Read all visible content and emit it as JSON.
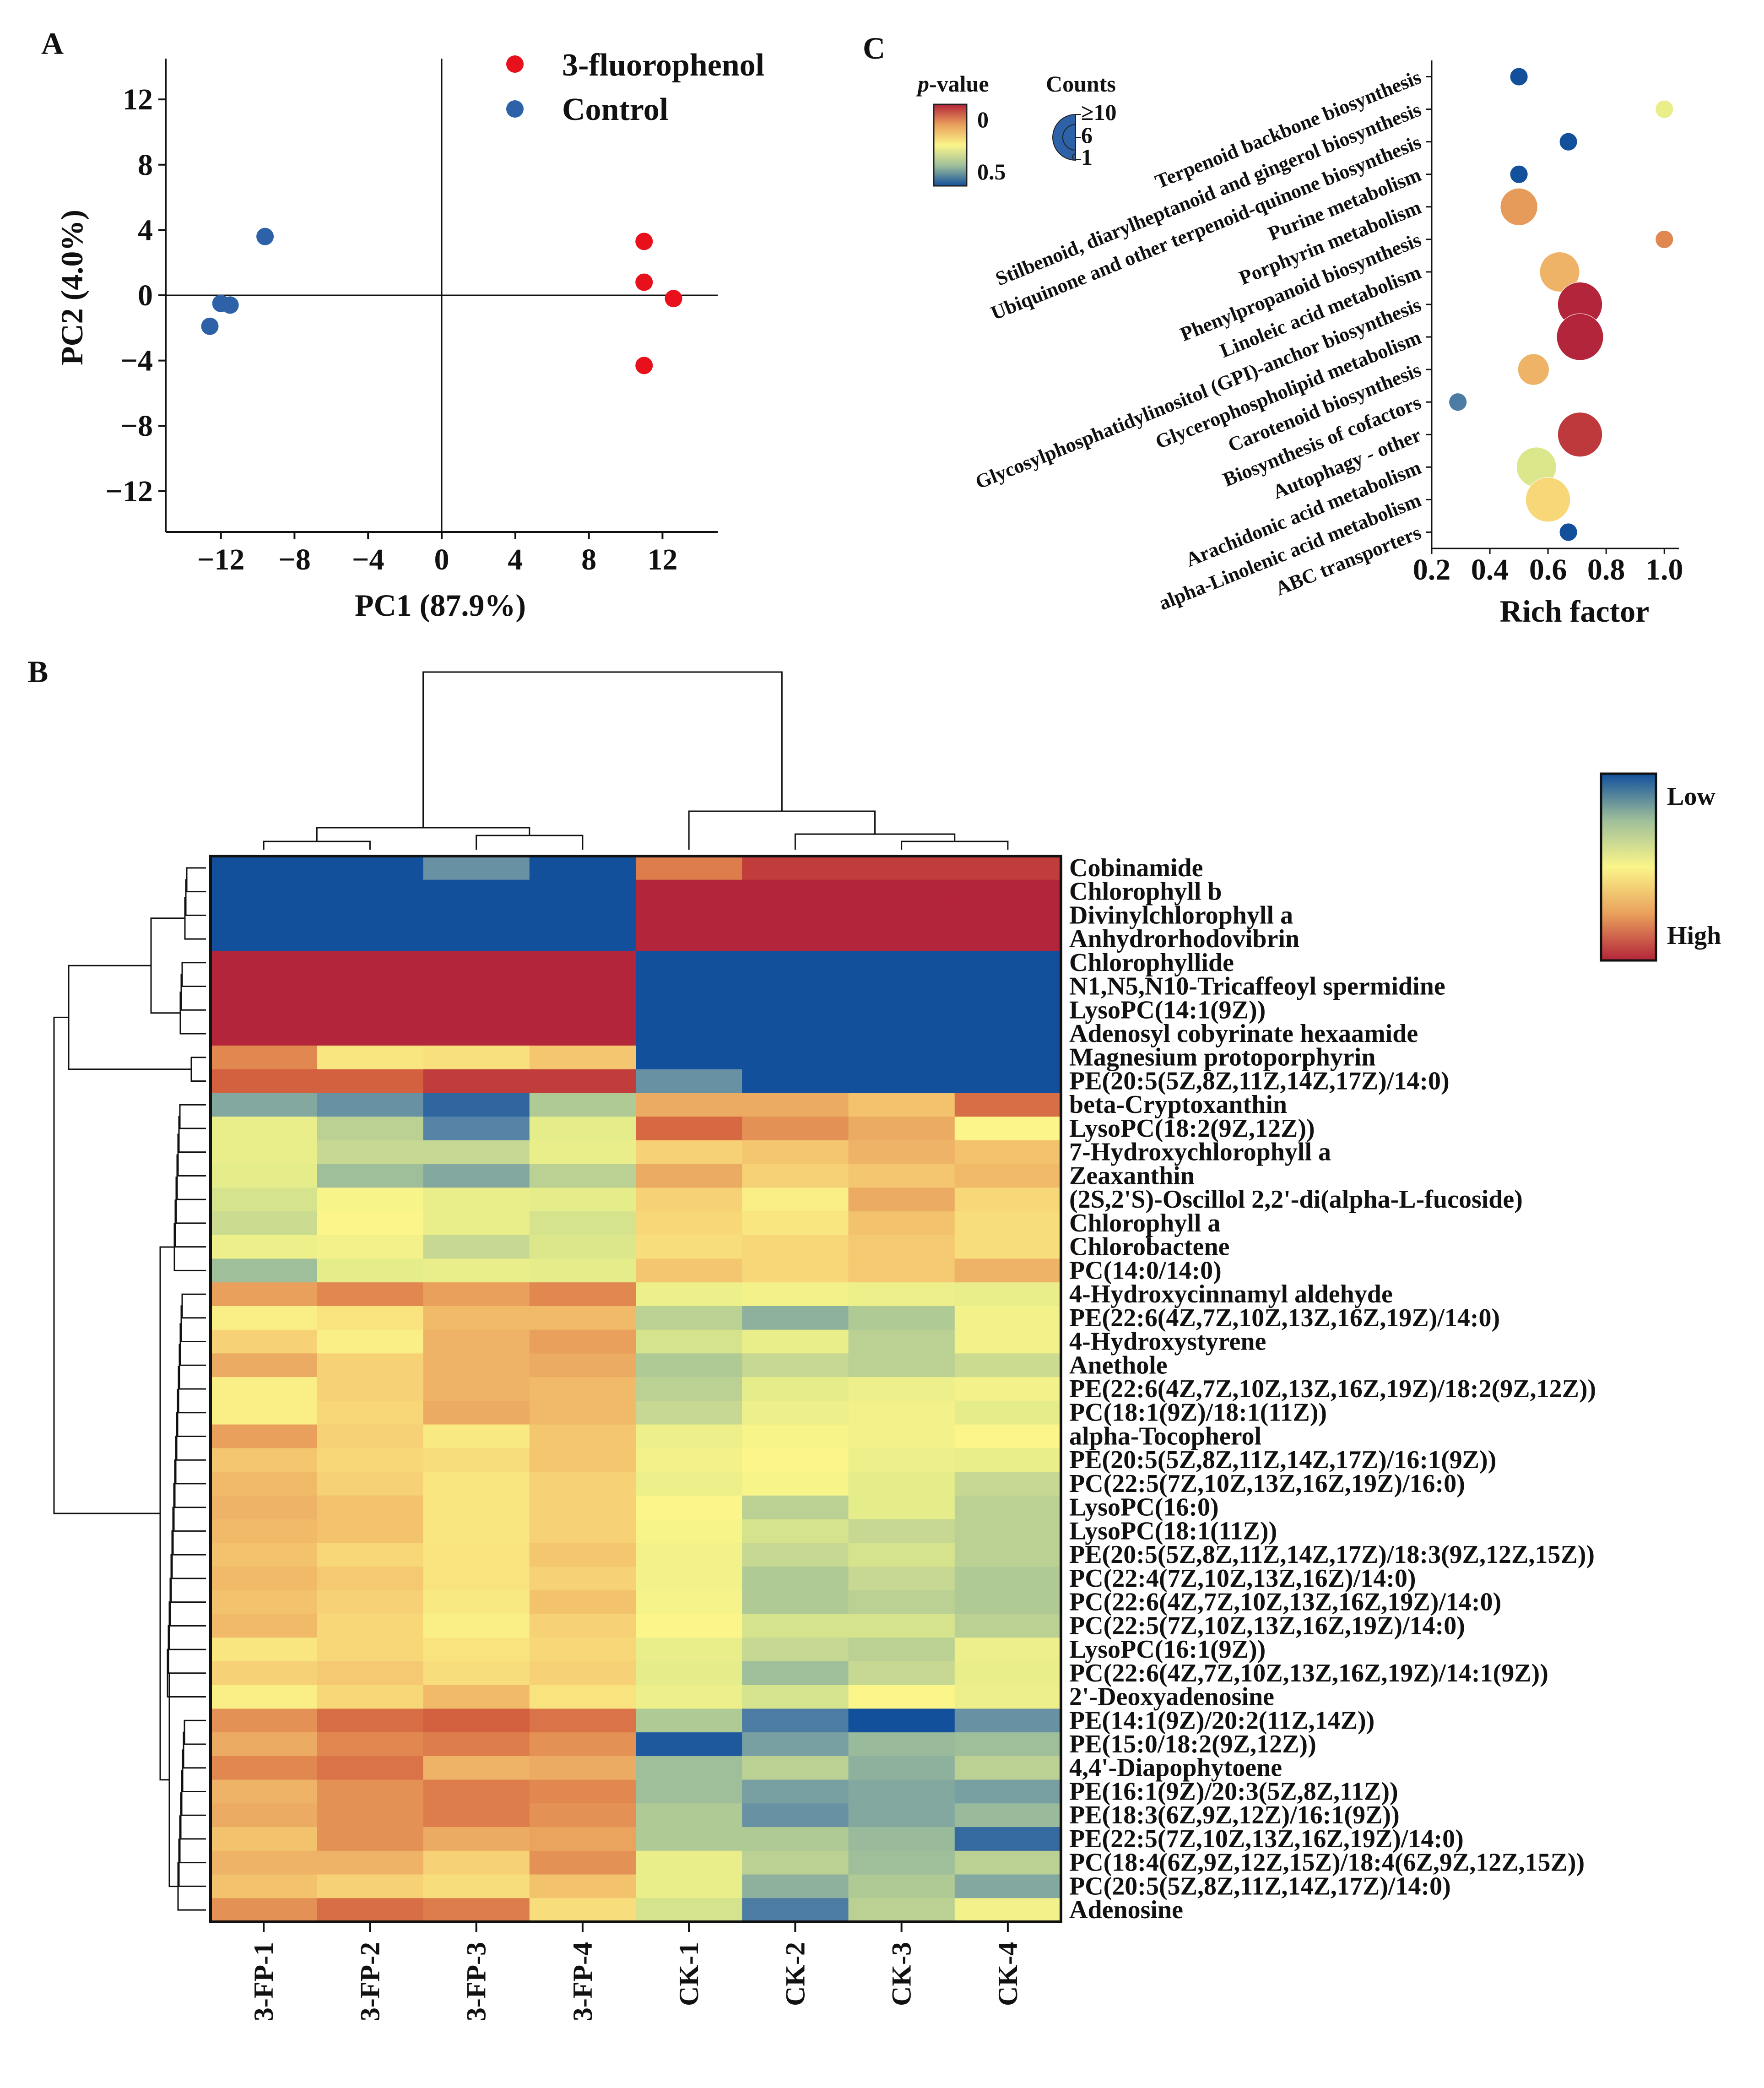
{
  "panel_letters": {
    "a": "A",
    "b": "B",
    "c": "C"
  },
  "colors": {
    "fluorophenol": "#e8101a",
    "control": "#2e62a8",
    "axis": "#111111",
    "palette": [
      "#12509c",
      "#5a86a6",
      "#9fbf9a",
      "#e4ec8a",
      "#fbf58a",
      "#f6cf74",
      "#e9a05c",
      "#d4623f",
      "#b3253a"
    ]
  },
  "chart_data": [
    {
      "id": "pca",
      "type": "scatter",
      "title": "",
      "xlabel": "PC1 (87.9%)",
      "ylabel": "PC2 (4.0%)",
      "xlim": [
        -15,
        15
      ],
      "ylim": [
        -14.5,
        14.5
      ],
      "xticks": [
        -12,
        -8,
        -4,
        0,
        4,
        8,
        12
      ],
      "yticks": [
        12,
        8,
        4,
        0,
        -4,
        -8,
        -12
      ],
      "xtick_labels": [
        "−12",
        "−8",
        "−4",
        "0",
        "4",
        "8",
        "12"
      ],
      "ytick_labels": [
        "12",
        "8",
        "4",
        "0",
        "−4",
        "−8",
        "−12"
      ],
      "series": [
        {
          "name": "3-fluorophenol",
          "color": "#e8101a",
          "points": [
            [
              11.0,
              3.3
            ],
            [
              11.0,
              0.8
            ],
            [
              12.6,
              -0.2
            ],
            [
              11.0,
              -4.3
            ]
          ]
        },
        {
          "name": "Control",
          "color": "#2e62a8",
          "points": [
            [
              -9.6,
              3.6
            ],
            [
              -12.0,
              -0.5
            ],
            [
              -11.5,
              -0.6
            ],
            [
              -12.6,
              -1.9
            ]
          ]
        }
      ]
    },
    {
      "id": "heatmap",
      "type": "heatmap",
      "title": "",
      "columns": [
        "3-FP-1",
        "3-FP-2",
        "3-FP-3",
        "3-FP-4",
        "CK-1",
        "CK-2",
        "CK-3",
        "CK-4"
      ],
      "rows": [
        "Cobinamide",
        "Chlorophyll b",
        "Divinylchlorophyll a",
        "Anhydrorhodovibrin",
        "Chlorophyllide",
        "N1,N5,N10-Tricaffeoyl spermidine",
        "LysoPC(14:1(9Z))",
        "Adenosyl cobyrinate hexaamide",
        "Magnesium protoporphyrin",
        "PE(20:5(5Z,8Z,11Z,14Z,17Z)/14:0)",
        "beta-Cryptoxanthin",
        "LysoPC(18:2(9Z,12Z))",
        "7-Hydroxychlorophyll a",
        "Zeaxanthin",
        "(2S,2'S)-Oscillol 2,2'-di(alpha-L-fucoside)",
        "Chlorophyll a",
        "Chlorobactene",
        "PC(14:0/14:0)",
        "4-Hydroxycinnamyl aldehyde",
        "PE(22:6(4Z,7Z,10Z,13Z,16Z,19Z)/14:0)",
        "4-Hydroxystyrene",
        "Anethole",
        "PE(22:6(4Z,7Z,10Z,13Z,16Z,19Z)/18:2(9Z,12Z))",
        "PC(18:1(9Z)/18:1(11Z))",
        "alpha-Tocopherol",
        "PE(20:5(5Z,8Z,11Z,14Z,17Z)/16:1(9Z))",
        "PC(22:5(7Z,10Z,13Z,16Z,19Z)/16:0)",
        "LysoPC(16:0)",
        "LysoPC(18:1(11Z))",
        "PE(20:5(5Z,8Z,11Z,14Z,17Z)/18:3(9Z,12Z,15Z))",
        "PC(22:4(7Z,10Z,13Z,16Z)/14:0)",
        "PC(22:6(4Z,7Z,10Z,13Z,16Z,19Z)/14:0)",
        "PC(22:5(7Z,10Z,13Z,16Z,19Z)/14:0)",
        "LysoPC(16:1(9Z))",
        "PC(22:6(4Z,7Z,10Z,13Z,16Z,19Z)/14:1(9Z))",
        "2'-Deoxyadenosine",
        "PE(14:1(9Z)/20:2(11Z,14Z))",
        "PE(15:0/18:2(9Z,12Z))",
        "4,4'-Diapophytoene",
        "PE(16:1(9Z)/20:3(5Z,8Z,11Z))",
        "PE(18:3(6Z,9Z,12Z)/16:1(9Z))",
        "PE(22:5(7Z,10Z,13Z,16Z,19Z)/14:0)",
        "PC(18:4(6Z,9Z,12Z,15Z)/18:4(6Z,9Z,12Z,15Z))",
        "PC(20:5(5Z,8Z,11Z,14Z,17Z)/14:0)",
        "Adenosine"
      ],
      "values_scale": "0 = Low (blue) ... 1 = High (red)",
      "values": [
        [
          0.0,
          0.0,
          0.15,
          0.0,
          0.82,
          0.95,
          0.95,
          0.95
        ],
        [
          0.0,
          0.0,
          0.0,
          0.0,
          1.0,
          1.0,
          1.0,
          1.0
        ],
        [
          0.0,
          0.0,
          0.0,
          0.0,
          1.0,
          1.0,
          1.0,
          1.0
        ],
        [
          0.0,
          0.0,
          0.0,
          0.0,
          1.0,
          1.0,
          1.0,
          1.0
        ],
        [
          1.0,
          1.0,
          1.0,
          1.0,
          0.0,
          0.0,
          0.0,
          0.0
        ],
        [
          1.0,
          1.0,
          1.0,
          1.0,
          0.0,
          0.0,
          0.0,
          0.0
        ],
        [
          1.0,
          1.0,
          1.0,
          1.0,
          0.0,
          0.0,
          0.0,
          0.0
        ],
        [
          1.0,
          1.0,
          1.0,
          1.0,
          0.0,
          0.0,
          0.0,
          0.0
        ],
        [
          0.8,
          0.55,
          0.57,
          0.65,
          0.0,
          0.0,
          0.0,
          0.0
        ],
        [
          0.88,
          0.88,
          0.95,
          0.95,
          0.15,
          0.0,
          0.0,
          0.0
        ],
        [
          0.2,
          0.15,
          0.05,
          0.28,
          0.72,
          0.72,
          0.66,
          0.85
        ],
        [
          0.4,
          0.3,
          0.12,
          0.38,
          0.86,
          0.78,
          0.72,
          0.5
        ],
        [
          0.4,
          0.32,
          0.32,
          0.4,
          0.62,
          0.65,
          0.7,
          0.66
        ],
        [
          0.38,
          0.25,
          0.2,
          0.3,
          0.72,
          0.62,
          0.65,
          0.68
        ],
        [
          0.35,
          0.48,
          0.4,
          0.38,
          0.62,
          0.52,
          0.72,
          0.6
        ],
        [
          0.33,
          0.5,
          0.4,
          0.35,
          0.6,
          0.55,
          0.66,
          0.58
        ],
        [
          0.42,
          0.45,
          0.32,
          0.36,
          0.58,
          0.6,
          0.64,
          0.58
        ],
        [
          0.25,
          0.38,
          0.4,
          0.38,
          0.65,
          0.6,
          0.64,
          0.7
        ],
        [
          0.75,
          0.8,
          0.75,
          0.8,
          0.42,
          0.45,
          0.42,
          0.4
        ],
        [
          0.52,
          0.56,
          0.68,
          0.68,
          0.3,
          0.22,
          0.28,
          0.45
        ],
        [
          0.62,
          0.52,
          0.7,
          0.75,
          0.35,
          0.4,
          0.3,
          0.45
        ],
        [
          0.72,
          0.62,
          0.7,
          0.72,
          0.28,
          0.32,
          0.3,
          0.33
        ],
        [
          0.52,
          0.62,
          0.7,
          0.68,
          0.3,
          0.38,
          0.42,
          0.45
        ],
        [
          0.52,
          0.6,
          0.72,
          0.68,
          0.32,
          0.42,
          0.45,
          0.38
        ],
        [
          0.75,
          0.62,
          0.54,
          0.65,
          0.42,
          0.48,
          0.45,
          0.5
        ],
        [
          0.65,
          0.6,
          0.58,
          0.65,
          0.45,
          0.5,
          0.42,
          0.4
        ],
        [
          0.68,
          0.62,
          0.55,
          0.62,
          0.42,
          0.48,
          0.38,
          0.32
        ],
        [
          0.7,
          0.66,
          0.55,
          0.62,
          0.5,
          0.3,
          0.38,
          0.3
        ],
        [
          0.68,
          0.66,
          0.55,
          0.62,
          0.48,
          0.35,
          0.32,
          0.3
        ],
        [
          0.66,
          0.6,
          0.56,
          0.65,
          0.45,
          0.32,
          0.35,
          0.3
        ],
        [
          0.68,
          0.64,
          0.56,
          0.62,
          0.45,
          0.28,
          0.32,
          0.28
        ],
        [
          0.66,
          0.62,
          0.54,
          0.66,
          0.47,
          0.28,
          0.3,
          0.28
        ],
        [
          0.68,
          0.6,
          0.52,
          0.62,
          0.5,
          0.35,
          0.35,
          0.3
        ],
        [
          0.55,
          0.6,
          0.56,
          0.6,
          0.4,
          0.32,
          0.3,
          0.42
        ],
        [
          0.62,
          0.64,
          0.58,
          0.62,
          0.38,
          0.25,
          0.32,
          0.4
        ],
        [
          0.52,
          0.6,
          0.68,
          0.56,
          0.42,
          0.35,
          0.5,
          0.42
        ],
        [
          0.78,
          0.85,
          0.88,
          0.84,
          0.28,
          0.1,
          0.0,
          0.15
        ],
        [
          0.72,
          0.8,
          0.82,
          0.78,
          0.02,
          0.18,
          0.24,
          0.25
        ],
        [
          0.8,
          0.84,
          0.7,
          0.72,
          0.25,
          0.3,
          0.22,
          0.3
        ],
        [
          0.7,
          0.78,
          0.82,
          0.8,
          0.25,
          0.18,
          0.2,
          0.18
        ],
        [
          0.72,
          0.78,
          0.82,
          0.78,
          0.28,
          0.15,
          0.2,
          0.24
        ],
        [
          0.66,
          0.78,
          0.72,
          0.74,
          0.28,
          0.28,
          0.24,
          0.06
        ],
        [
          0.7,
          0.7,
          0.62,
          0.78,
          0.4,
          0.3,
          0.25,
          0.3
        ],
        [
          0.66,
          0.62,
          0.58,
          0.66,
          0.4,
          0.22,
          0.28,
          0.2
        ],
        [
          0.78,
          0.85,
          0.82,
          0.58,
          0.35,
          0.1,
          0.3,
          0.45
        ]
      ],
      "colorbar": {
        "low_label": "Low",
        "high_label": "High"
      },
      "dendrogram_cols": "3-FP cluster vs CK cluster",
      "dendrogram_rows": "hierarchical clustering (rows)"
    },
    {
      "id": "enrichment",
      "type": "scatter",
      "title": "",
      "xlabel": "Rich factor",
      "ylabel": "",
      "xlim": [
        0.2,
        1.05
      ],
      "xticks": [
        0.2,
        0.4,
        0.6,
        0.8,
        1.0
      ],
      "xtick_labels": [
        "0.2",
        "0.4",
        "0.6",
        "0.8",
        "1.0"
      ],
      "legend_pvalue": {
        "title_italic": "p",
        "title_rest": "-value",
        "max_label": "0",
        "min_label": "0.5"
      },
      "legend_counts": {
        "title": "Counts",
        "labels": [
          "≥10",
          "6",
          "1"
        ]
      },
      "categories": [
        "Terpenoid backbone biosynthesis",
        "Stilbenoid, diarylheptanoid and gingerol biosynthesis",
        "Ubiquinone and other terpenoid-quinone biosynthesis",
        "Purine metabolism",
        "Porphyrin metabolism",
        "Phenylpropanoid biosynthesis",
        "Linoleic acid metabolism",
        "Glycosylphosphatidylinositol (GPI)-anchor biosynthesis",
        "Glycerophospholipid metabolism",
        "Carotenoid biosynthesis",
        "Biosynthesis of cofactors",
        "Autophagy - other",
        "Arachidonic acid metabolism",
        "alpha-Linolenic acid metabolism",
        "ABC transporters"
      ],
      "rich_factor": [
        0.5,
        1.0,
        0.67,
        0.5,
        0.5,
        1.0,
        0.64,
        0.71,
        0.71,
        0.55,
        0.29,
        0.71,
        0.56,
        0.6,
        0.67
      ],
      "counts": [
        1,
        1,
        1,
        1,
        6,
        1,
        7,
        9,
        10,
        4,
        1,
        9,
        7,
        9,
        1
      ],
      "p_value": [
        0.5,
        0.3,
        0.5,
        0.5,
        0.12,
        0.1,
        0.15,
        0.0,
        0.0,
        0.15,
        0.45,
        0.02,
        0.32,
        0.2,
        0.5
      ]
    }
  ]
}
